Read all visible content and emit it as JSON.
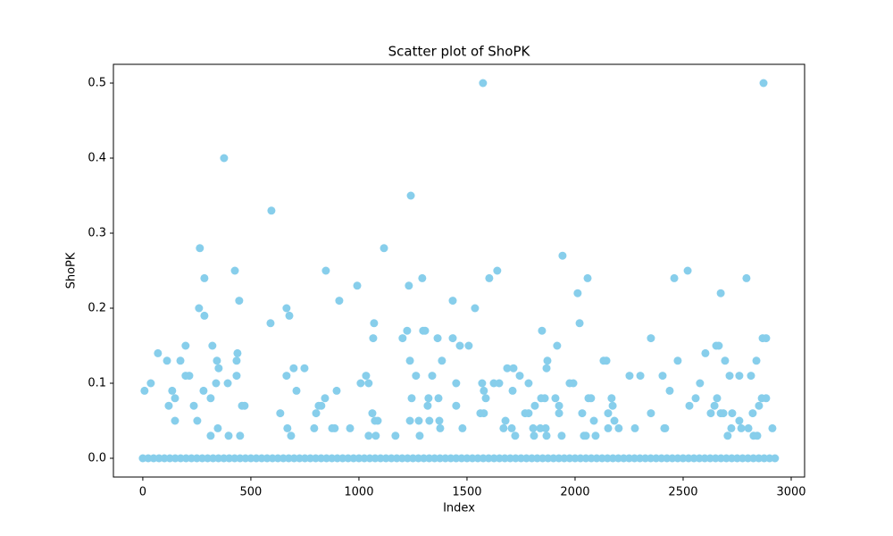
{
  "chart_data": {
    "type": "scatter",
    "title": "Scatter plot of ShoPK",
    "xlabel": "Index",
    "ylabel": "ShoPK",
    "color": "#87ceeb",
    "xlim": [
      -136,
      3062
    ],
    "ylim": [
      -0.025,
      0.525
    ],
    "xticks": [
      0,
      500,
      1000,
      1500,
      2000,
      2500,
      3000
    ],
    "yticks": [
      {
        "value": 0,
        "label": "0.0"
      },
      0.1,
      0.2,
      0.3,
      0.4,
      0.5
    ],
    "x": [
      0,
      25,
      50,
      75,
      100,
      125,
      150,
      175,
      200,
      225,
      250,
      275,
      300,
      325,
      350,
      375,
      400,
      425,
      450,
      475,
      500,
      525,
      550,
      575,
      600,
      625,
      650,
      675,
      700,
      725,
      750,
      775,
      800,
      825,
      850,
      875,
      900,
      925,
      950,
      975,
      1000,
      1025,
      1050,
      1075,
      1100,
      1125,
      1150,
      1175,
      1200,
      1225,
      1250,
      1275,
      1300,
      1325,
      1350,
      1375,
      1400,
      1425,
      1450,
      1475,
      1500,
      1525,
      1550,
      1575,
      1600,
      1625,
      1650,
      1675,
      1700,
      1725,
      1750,
      1775,
      1800,
      1825,
      1850,
      1875,
      1900,
      1925,
      1950,
      1975,
      2000,
      2025,
      2050,
      2075,
      2100,
      2125,
      2150,
      2175,
      2200,
      2225,
      2250,
      2275,
      2300,
      2325,
      2350,
      2375,
      2400,
      2425,
      2450,
      2475,
      2500,
      2525,
      2550,
      2575,
      2600,
      2625,
      2650,
      2675,
      2700,
      2725,
      2750,
      2775,
      2800,
      2825,
      2850,
      2875,
      2900,
      2925,
      8,
      37,
      70,
      112,
      120,
      136,
      149,
      149,
      174,
      198,
      198,
      215,
      236,
      252,
      260,
      264,
      281,
      285,
      285,
      314,
      314,
      322,
      339,
      343,
      347,
      351,
      376,
      393,
      397,
      426,
      434,
      434,
      438,
      446,
      450,
      459,
      471,
      591,
      595,
      636,
      665,
      665,
      669,
      678,
      686,
      698,
      711,
      748,
      793,
      802,
      814,
      826,
      843,
      847,
      876,
      888,
      897,
      909,
      959,
      992,
      1008,
      1033,
      1045,
      1045,
      1062,
      1066,
      1070,
      1074,
      1078,
      1087,
      1116,
      1169,
      1202,
      1223,
      1231,
      1236,
      1236,
      1240,
      1244,
      1264,
      1277,
      1281,
      1293,
      1297,
      1306,
      1318,
      1322,
      1326,
      1339,
      1364,
      1368,
      1372,
      1376,
      1384,
      1434,
      1434,
      1450,
      1450,
      1467,
      1479,
      1508,
      1537,
      1562,
      1570,
      1574,
      1578,
      1578,
      1587,
      1603,
      1624,
      1640,
      1649,
      1669,
      1678,
      1686,
      1707,
      1711,
      1715,
      1723,
      1744,
      1769,
      1785,
      1785,
      1806,
      1810,
      1814,
      1839,
      1843,
      1847,
      1860,
      1864,
      1868,
      1868,
      1872,
      1909,
      1917,
      1926,
      1926,
      1938,
      1942,
      1975,
      1992,
      2012,
      2021,
      2033,
      2041,
      2050,
      2058,
      2062,
      2074,
      2087,
      2095,
      2132,
      2145,
      2153,
      2153,
      2169,
      2174,
      2182,
      2202,
      2252,
      2277,
      2302,
      2351,
      2351,
      2405,
      2413,
      2417,
      2438,
      2459,
      2475,
      2521,
      2529,
      2558,
      2578,
      2603,
      2628,
      2645,
      2653,
      2657,
      2665,
      2674,
      2674,
      2686,
      2694,
      2706,
      2715,
      2723,
      2727,
      2760,
      2760,
      2769,
      2793,
      2802,
      2814,
      2822,
      2826,
      2839,
      2843,
      2851,
      2864,
      2868,
      2884,
      2884,
      2913,
      2872
    ],
    "values": [
      0,
      0,
      0,
      0,
      0,
      0,
      0,
      0,
      0,
      0,
      0,
      0,
      0,
      0,
      0,
      0,
      0,
      0,
      0,
      0,
      0,
      0,
      0,
      0,
      0,
      0,
      0,
      0,
      0,
      0,
      0,
      0,
      0,
      0,
      0,
      0,
      0,
      0,
      0,
      0,
      0,
      0,
      0,
      0,
      0,
      0,
      0,
      0,
      0,
      0,
      0,
      0,
      0,
      0,
      0,
      0,
      0,
      0,
      0,
      0,
      0,
      0,
      0,
      0,
      0,
      0,
      0,
      0,
      0,
      0,
      0,
      0,
      0,
      0,
      0,
      0,
      0,
      0,
      0,
      0,
      0,
      0,
      0,
      0,
      0,
      0,
      0,
      0,
      0,
      0,
      0,
      0,
      0,
      0,
      0,
      0,
      0,
      0,
      0,
      0,
      0,
      0,
      0,
      0,
      0,
      0,
      0,
      0,
      0,
      0,
      0,
      0,
      0,
      0,
      0,
      0,
      0,
      0,
      0.09,
      0.1,
      0.14,
      0.13,
      0.07,
      0.09,
      0.05,
      0.08,
      0.13,
      0.15,
      0.11,
      0.11,
      0.07,
      0.05,
      0.2,
      0.28,
      0.09,
      0.19,
      0.24,
      0.03,
      0.08,
      0.15,
      0.1,
      0.13,
      0.04,
      0.12,
      0.4,
      0.1,
      0.03,
      0.25,
      0.13,
      0.11,
      0.14,
      0.21,
      0.03,
      0.07,
      0.07,
      0.18,
      0.33,
      0.06,
      0.11,
      0.2,
      0.04,
      0.19,
      0.03,
      0.12,
      0.09,
      0.12,
      0.04,
      0.06,
      0.07,
      0.07,
      0.08,
      0.25,
      0.04,
      0.04,
      0.09,
      0.21,
      0.04,
      0.23,
      0.1,
      0.11,
      0.03,
      0.1,
      0.06,
      0.16,
      0.18,
      0.05,
      0.03,
      0.05,
      0.28,
      0.03,
      0.16,
      0.17,
      0.23,
      0.13,
      0.05,
      0.35,
      0.08,
      0.11,
      0.05,
      0.03,
      0.24,
      0.17,
      0.17,
      0.07,
      0.08,
      0.05,
      0.11,
      0.16,
      0.08,
      0.05,
      0.04,
      0.13,
      0.21,
      0.16,
      0.07,
      0.1,
      0.15,
      0.04,
      0.15,
      0.2,
      0.06,
      0.1,
      0.5,
      0.09,
      0.06,
      0.08,
      0.24,
      0.1,
      0.25,
      0.1,
      0.04,
      0.05,
      0.12,
      0.04,
      0.09,
      0.12,
      0.03,
      0.11,
      0.06,
      0.06,
      0.1,
      0.04,
      0.03,
      0.07,
      0.04,
      0.08,
      0.17,
      0.08,
      0.04,
      0.12,
      0.03,
      0.13,
      0.08,
      0.15,
      0.06,
      0.07,
      0.03,
      0.27,
      0.1,
      0.1,
      0.22,
      0.18,
      0.06,
      0.03,
      0.03,
      0.24,
      0.08,
      0.08,
      0.05,
      0.03,
      0.13,
      0.13,
      0.04,
      0.06,
      0.08,
      0.07,
      0.05,
      0.04,
      0.11,
      0.04,
      0.11,
      0.16,
      0.06,
      0.11,
      0.04,
      0.04,
      0.09,
      0.24,
      0.13,
      0.25,
      0.07,
      0.08,
      0.1,
      0.14,
      0.06,
      0.07,
      0.15,
      0.08,
      0.15,
      0.22,
      0.06,
      0.06,
      0.13,
      0.03,
      0.11,
      0.04,
      0.06,
      0.05,
      0.11,
      0.04,
      0.24,
      0.04,
      0.11,
      0.06,
      0.03,
      0.13,
      0.03,
      0.07,
      0.08,
      0.16,
      0.16,
      0.08,
      0.04,
      0.5
    ]
  }
}
